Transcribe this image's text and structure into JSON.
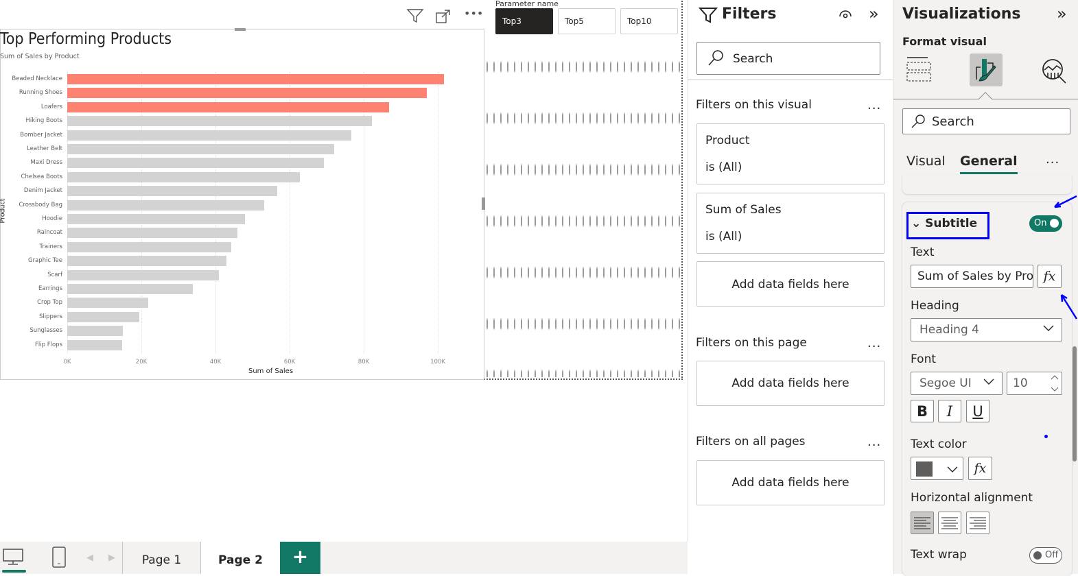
{
  "visual": {
    "title": "Top Performing Products",
    "subtitle": "Sum of Sales by Product",
    "header_icons": [
      "filter-icon",
      "focus-mode-icon",
      "more-options-icon"
    ]
  },
  "chart_data": {
    "type": "bar",
    "orientation": "horizontal",
    "title": "Top Performing Products",
    "subtitle": "Sum of Sales by Product",
    "xlabel": "Sum of Sales",
    "ylabel": "Product",
    "xlim": [
      0,
      110000
    ],
    "xticks": [
      "0K",
      "20K",
      "40K",
      "60K",
      "80K",
      "100K"
    ],
    "xtick_values": [
      0,
      20000,
      40000,
      60000,
      80000,
      100000
    ],
    "categories": [
      "Beaded Necklace",
      "Running Shoes",
      "Loafers",
      "Hiking Boots",
      "Bomber Jacket",
      "Leather Belt",
      "Maxi Dress",
      "Chelsea Boots",
      "Denim Jacket",
      "Crossbody Bag",
      "Hoodie",
      "Raincoat",
      "Trainers",
      "Graphic Tee",
      "Scarf",
      "Earrings",
      "Crop Top",
      "Slippers",
      "Sunglasses",
      "Flip Flops"
    ],
    "values": [
      101700,
      97000,
      86900,
      82200,
      76700,
      72000,
      69300,
      62800,
      56700,
      53100,
      48000,
      45900,
      44300,
      43000,
      40900,
      33900,
      21900,
      19400,
      15000,
      14800
    ],
    "highlight_top_n": 3,
    "colors": {
      "highlight": "#fd8272",
      "default": "#d3d3d3"
    },
    "grid": true
  },
  "slicer": {
    "title": "Parameter name",
    "options": [
      "Top3",
      "Top5",
      "Top10"
    ],
    "selected": "Top3"
  },
  "filters": {
    "title": "Filters",
    "search_placeholder": "Search",
    "on_visual_label": "Filters on this visual",
    "on_visual": [
      {
        "field": "Product",
        "state": "is (All)"
      },
      {
        "field": "Sum of Sales",
        "state": "is (All)"
      }
    ],
    "add_fields": "Add data fields here",
    "on_page_label": "Filters on this page",
    "on_all_label": "Filters on all pages",
    "more": "..."
  },
  "viz": {
    "title": "Visualizations",
    "format_label": "Format visual",
    "search_placeholder": "Search",
    "tabs": [
      "Visual",
      "General"
    ],
    "active_tab": "General",
    "more": "...",
    "section": "Subtitle",
    "toggle_on": "On",
    "text_label": "Text",
    "text_value": "Sum of Sales by Product",
    "fx": "fx",
    "heading_label": "Heading",
    "heading_value": "Heading 4",
    "font_label": "Font",
    "font_value": "Segoe UI",
    "font_size": "10",
    "bold": "B",
    "italic": "I",
    "underline": "U",
    "text_color_label": "Text color",
    "text_color": "#605e5c",
    "halign_label": "Horizontal alignment",
    "wrap_label": "Text wrap",
    "toggle_off": "Off",
    "accent": "#117865",
    "annotation_color": "#0000ff"
  },
  "pages": {
    "tabs": [
      "Page 1",
      "Page 2"
    ],
    "active": "Page 2",
    "add": "+"
  }
}
